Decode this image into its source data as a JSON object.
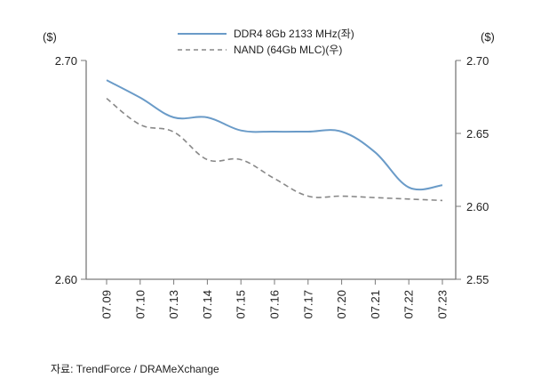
{
  "chart_data": {
    "type": "line",
    "categories": [
      "07.09",
      "07.10",
      "07.13",
      "07.14",
      "07.15",
      "07.16",
      "07.17",
      "07.20",
      "07.21",
      "07.22",
      "07.23"
    ],
    "series": [
      {
        "name": "DDR4 8Gb 2133 MHz(좌)",
        "axis": "left",
        "style": "solid",
        "color": "#6a9bc8",
        "values": [
          2.691,
          2.683,
          2.674,
          2.674,
          2.668,
          2.6675,
          2.6675,
          2.6675,
          2.658,
          2.642,
          2.643
        ]
      },
      {
        "name": "NAND (64Gb MLC)(우)",
        "axis": "right",
        "style": "dashed",
        "color": "#888888",
        "values": [
          2.674,
          2.656,
          2.651,
          2.632,
          2.632,
          2.619,
          2.607,
          2.607,
          2.606,
          2.605,
          2.604
        ]
      }
    ],
    "y_left": {
      "unit": "($)",
      "min": 2.6,
      "max": 2.7,
      "ticks": [
        "2.60",
        "2.70"
      ],
      "tick_values": [
        2.6,
        2.7
      ]
    },
    "y_right": {
      "unit": "($)",
      "min": 2.55,
      "max": 2.7,
      "ticks": [
        "2.55",
        "2.60",
        "2.65",
        "2.70"
      ],
      "tick_values": [
        2.55,
        2.6,
        2.65,
        2.7
      ]
    },
    "grid": false,
    "legend_position": "top-center"
  },
  "source": "자료: TrendForce / DRAMeXchange"
}
